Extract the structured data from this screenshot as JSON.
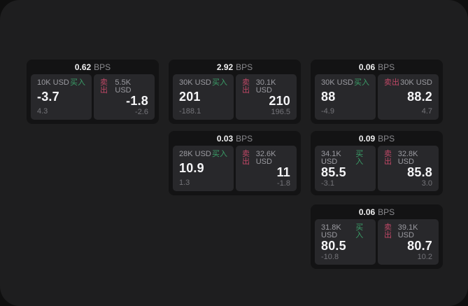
{
  "labels": {
    "bps": "BPS",
    "buy": "买入",
    "sell": "卖出"
  },
  "colors": {
    "buy": "#3a9e68",
    "sell": "#bf4766",
    "screen_bg": "#1e1e1f",
    "card_bg": "#131314",
    "panel_bg": "#28282b"
  },
  "cards": [
    {
      "bps": "0.62",
      "buy": {
        "amount": "10K USD",
        "main": "-3.7",
        "sub": "4.3"
      },
      "sell": {
        "amount": "5.5K USD",
        "main": "-1.8",
        "sub": "-2.6"
      }
    },
    {
      "bps": "2.92",
      "buy": {
        "amount": "30K USD",
        "main": "201",
        "sub": "-188.1"
      },
      "sell": {
        "amount": "30.1K USD",
        "main": "210",
        "sub": "196.5"
      }
    },
    {
      "bps": "0.06",
      "buy": {
        "amount": "30K USD",
        "main": "88",
        "sub": "-4.9"
      },
      "sell": {
        "amount": "30K USD",
        "main": "88.2",
        "sub": "4.7"
      }
    },
    {
      "bps": "0.03",
      "buy": {
        "amount": "28K USD",
        "main": "10.9",
        "sub": "1.3"
      },
      "sell": {
        "amount": "32.6K USD",
        "main": "11",
        "sub": "-1.8"
      }
    },
    {
      "bps": "0.09",
      "buy": {
        "amount": "34.1K USD",
        "main": "85.5",
        "sub": "-3.1"
      },
      "sell": {
        "amount": "32.8K USD",
        "main": "85.8",
        "sub": "3.0"
      }
    },
    {
      "bps": "0.06",
      "buy": {
        "amount": "31.8K USD",
        "main": "80.5",
        "sub": "-10.8"
      },
      "sell": {
        "amount": "39.1K USD",
        "main": "80.7",
        "sub": "10.2"
      }
    }
  ]
}
